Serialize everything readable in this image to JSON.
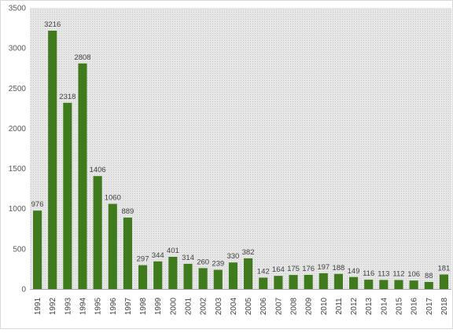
{
  "chart_data": {
    "type": "bar",
    "title": "",
    "xlabel": "",
    "ylabel": "",
    "ylim": [
      0,
      3500
    ],
    "yticks": [
      0,
      500,
      1000,
      1500,
      2000,
      2500,
      3000,
      3500
    ],
    "grid": false,
    "legend": "none",
    "categories": [
      "1991",
      "1992",
      "1993",
      "1994",
      "1995",
      "1996",
      "1997",
      "1998",
      "1999",
      "2000",
      "2001",
      "2002",
      "2003",
      "2004",
      "2005",
      "2006",
      "2007",
      "2008",
      "2009",
      "2010",
      "2011",
      "2012",
      "2013",
      "2014",
      "2015",
      "2016",
      "2017",
      "2018"
    ],
    "values": [
      976,
      3216,
      2318,
      2808,
      1406,
      1060,
      889,
      297,
      344,
      401,
      314,
      260,
      239,
      330,
      382,
      142,
      164,
      175,
      176,
      197,
      188,
      149,
      116,
      113,
      112,
      106,
      88,
      181
    ],
    "colors": {
      "bar": "#3f7a1d",
      "plot_background": "#e3e3e3",
      "axis": "#a6a6a6",
      "tick_text": "#595959",
      "label_text": "#404040"
    }
  }
}
